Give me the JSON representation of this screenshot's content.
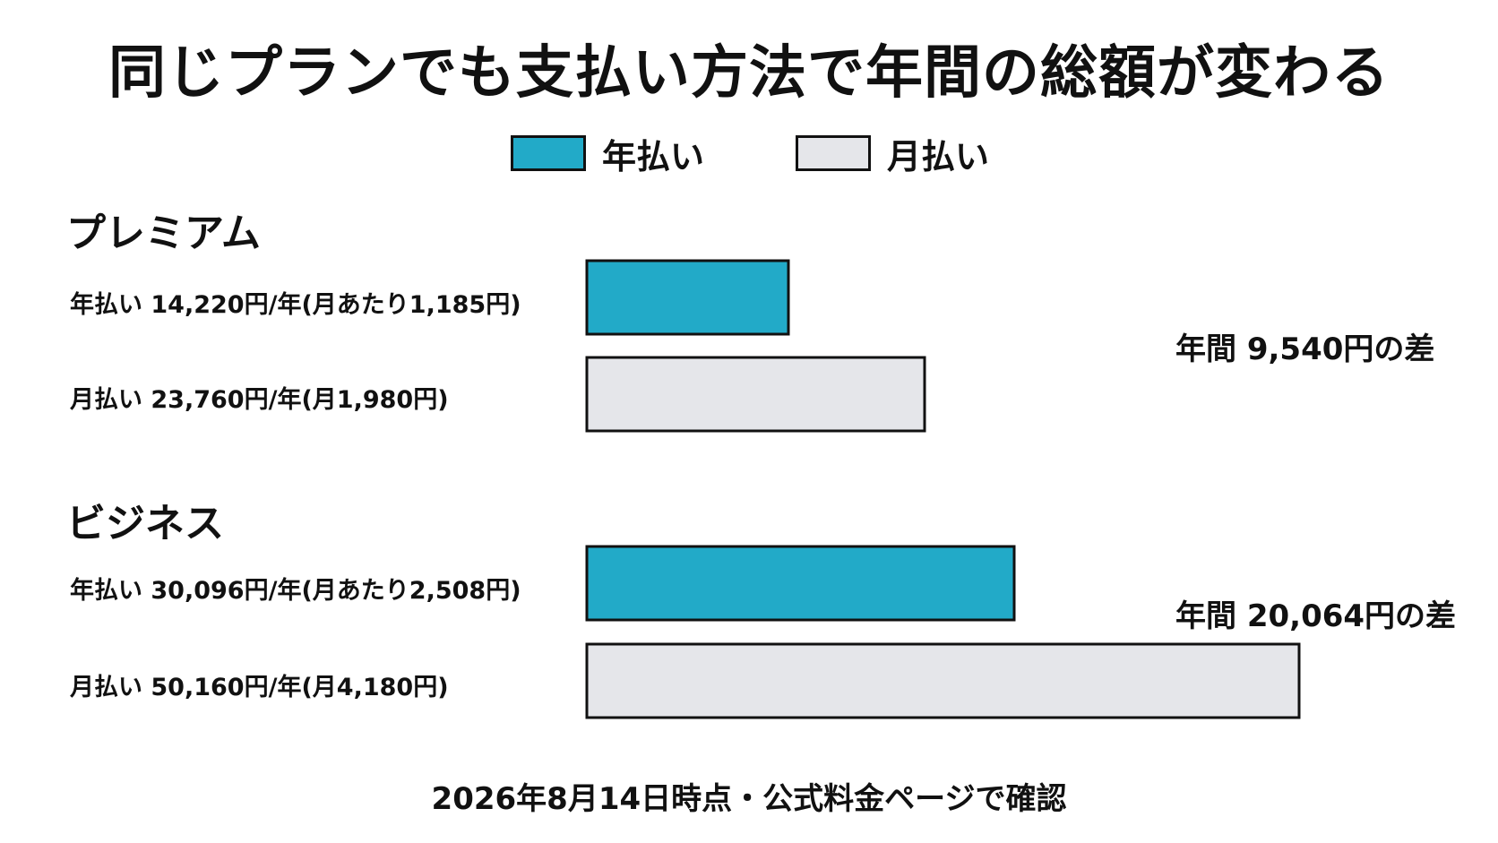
{
  "title": "同じプランでも支払い方法で年間の総額が変わる",
  "legend": [
    {
      "label": "年払い",
      "color": "#22aac8"
    },
    {
      "label": "月払い",
      "color": "#e5e6ea"
    }
  ],
  "footer": "2026年8月14日時点・公式料金ページで確認",
  "chart_data": {
    "type": "bar",
    "orientation": "horizontal",
    "title": "同じプランでも支払い方法で年間の総額が変わる",
    "categories": [
      "プレミアム",
      "ビジネス"
    ],
    "series": [
      {
        "name": "年払い",
        "values": [
          14220,
          30096
        ],
        "color": "#22aac8"
      },
      {
        "name": "月払い",
        "values": [
          23760,
          50160
        ],
        "color": "#e5e6ea"
      }
    ],
    "unit": "円/年",
    "legend_position": "top",
    "grid": false,
    "groups": [
      {
        "name": "プレミアム",
        "rows": [
          {
            "label": "年払い 14,220円/年(月あたり1,185円)",
            "value": 14220,
            "series": "年払い"
          },
          {
            "label": "月払い 23,760円/年(月1,980円)",
            "value": 23760,
            "series": "月払い"
          }
        ],
        "difference_label": "年間 9,540円の差"
      },
      {
        "name": "ビジネス",
        "rows": [
          {
            "label": "年払い 30,096円/年(月あたり2,508円)",
            "value": 30096,
            "series": "年払い"
          },
          {
            "label": "月払い 50,160円/年(月4,180円)",
            "value": 50160,
            "series": "月払い"
          }
        ],
        "difference_label": "年間 20,064円の差"
      }
    ]
  }
}
